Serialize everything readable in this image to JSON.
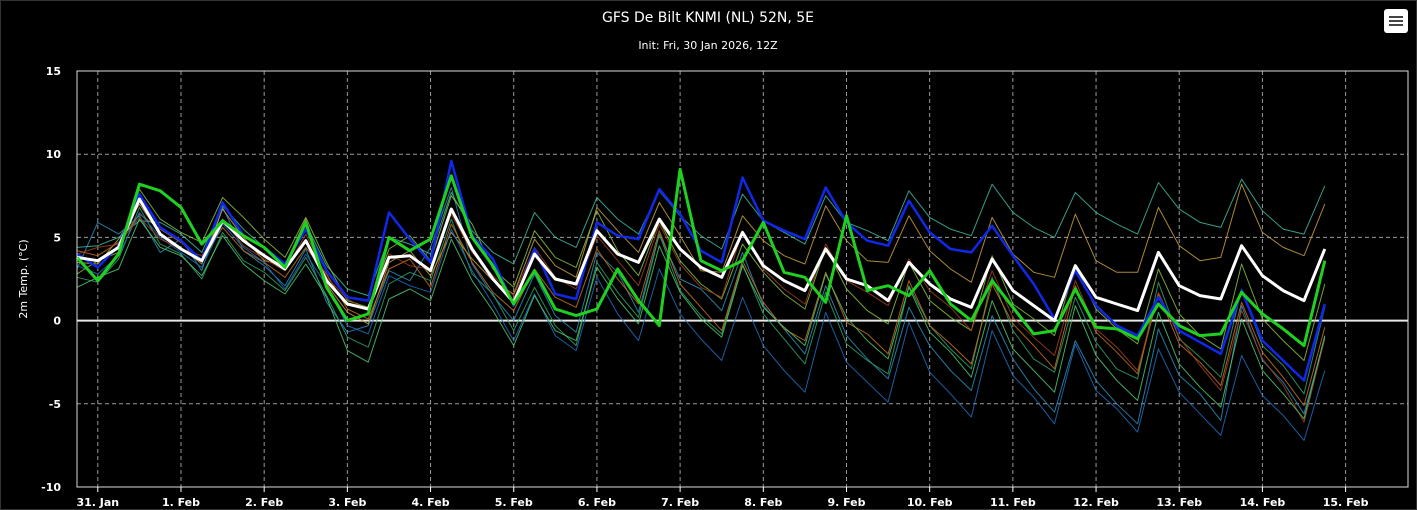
{
  "chart_data": {
    "type": "line",
    "title": "GFS De Bilt KNMI (NL) 52N, 5E",
    "subtitle": "Init: Fri, 30 Jan 2026, 12Z",
    "ylabel": "2m Temp. (°C)",
    "ylim": [
      -10,
      15
    ],
    "yticks": [
      -10,
      -5,
      0,
      5,
      10,
      15
    ],
    "x_start": "2026-01-30T18:00Z",
    "x_step_hours": 6,
    "xlim": [
      "2026-01-30T18:00Z",
      "2026-02-15T18:00Z"
    ],
    "xticks": [
      {
        "t": "2026-01-31T00:00Z",
        "label": "31. Jan"
      },
      {
        "t": "2026-02-01T00:00Z",
        "label": "1. Feb"
      },
      {
        "t": "2026-02-02T00:00Z",
        "label": "2. Feb"
      },
      {
        "t": "2026-02-03T00:00Z",
        "label": "3. Feb"
      },
      {
        "t": "2026-02-04T00:00Z",
        "label": "4. Feb"
      },
      {
        "t": "2026-02-05T00:00Z",
        "label": "5. Feb"
      },
      {
        "t": "2026-02-06T00:00Z",
        "label": "6. Feb"
      },
      {
        "t": "2026-02-07T00:00Z",
        "label": "7. Feb"
      },
      {
        "t": "2026-02-08T00:00Z",
        "label": "8. Feb"
      },
      {
        "t": "2026-02-09T00:00Z",
        "label": "9. Feb"
      },
      {
        "t": "2026-02-10T00:00Z",
        "label": "10. Feb"
      },
      {
        "t": "2026-02-11T00:00Z",
        "label": "11. Feb"
      },
      {
        "t": "2026-02-12T00:00Z",
        "label": "12. Feb"
      },
      {
        "t": "2026-02-13T00:00Z",
        "label": "13. Feb"
      },
      {
        "t": "2026-02-14T00:00Z",
        "label": "14. Feb"
      },
      {
        "t": "2026-02-15T00:00Z",
        "label": "15. Feb"
      }
    ],
    "grid": true,
    "series": [
      {
        "color": "#ffffff",
        "width": 3,
        "values": [
          3.8,
          3.6,
          4.4,
          7.3,
          5.2,
          4.3,
          3.6,
          6.0,
          4.8,
          3.9,
          3.1,
          4.8,
          2.4,
          1.0,
          0.7,
          3.8,
          3.9,
          3.0,
          6.7,
          4.3,
          2.5,
          1.1,
          4.0,
          2.5,
          2.2,
          5.4,
          4.0,
          3.5,
          6.1,
          4.3,
          3.2,
          2.6,
          5.3,
          3.3,
          2.4,
          1.8,
          4.3,
          2.5,
          2.1,
          1.2,
          3.5,
          2.2,
          1.3,
          0.8,
          3.7,
          1.8,
          0.9,
          0.0,
          3.3,
          1.4,
          1.0,
          0.6,
          4.1,
          2.1,
          1.5,
          1.3,
          4.5,
          2.7,
          1.8,
          1.2,
          4.3
        ]
      },
      {
        "color": "#20d020",
        "width": 3,
        "values": [
          3.8,
          2.4,
          4.0,
          8.2,
          7.8,
          6.8,
          4.6,
          6.0,
          5.1,
          4.4,
          3.2,
          5.9,
          2.0,
          0.0,
          0.4,
          5.0,
          4.2,
          4.9,
          8.7,
          5.0,
          3.3,
          1.0,
          3.0,
          0.7,
          0.3,
          0.7,
          3.1,
          1.2,
          -0.3,
          9.1,
          3.6,
          3.0,
          3.6,
          5.9,
          2.9,
          2.6,
          1.1,
          6.3,
          1.8,
          2.1,
          1.5,
          3.0,
          1.0,
          0.0,
          2.4,
          0.8,
          -0.8,
          -0.6,
          1.9,
          -0.4,
          -0.5,
          -1.1,
          1.0,
          -0.3,
          -0.9,
          -0.8,
          1.7,
          0.4,
          -0.5,
          -1.5,
          3.6
        ]
      },
      {
        "color": "#1028e8",
        "width": 2.5,
        "values": [
          4.0,
          3.2,
          4.5,
          7.6,
          5.6,
          4.8,
          3.6,
          7.1,
          5.1,
          4.4,
          3.4,
          5.5,
          3.0,
          1.4,
          1.2,
          6.5,
          4.9,
          3.5,
          9.6,
          5.1,
          3.7,
          0.9,
          4.3,
          1.6,
          1.3,
          5.9,
          5.1,
          4.9,
          7.9,
          6.4,
          4.2,
          3.5,
          8.6,
          6.0,
          5.4,
          4.9,
          8.0,
          5.9,
          4.8,
          4.5,
          7.2,
          5.3,
          4.3,
          4.1,
          5.7,
          3.9,
          2.2,
          0.1,
          3.0,
          0.9,
          -0.3,
          -0.9,
          1.4,
          -0.6,
          -1.3,
          -2.0,
          1.8,
          -1.2,
          -2.4,
          -3.6,
          1.0
        ]
      },
      {
        "color": "#2a8fb8",
        "width": 1,
        "values": [
          3.1,
          5.9,
          5.2,
          6.3,
          4.1,
          4.9,
          3.0,
          6.8,
          4.2,
          3.3,
          2.1,
          4.3,
          1.1,
          -0.7,
          -0.3,
          3.0,
          2.4,
          4.4,
          8.0,
          3.4,
          1.5,
          0.0,
          2.8,
          0.3,
          -0.7,
          4.1,
          2.9,
          0.5,
          5.2,
          2.5,
          1.9,
          0.6,
          4.1,
          0.9,
          -0.5,
          -2.0,
          2.1,
          -0.9,
          -2.3,
          -3.5,
          0.8,
          -1.5,
          -3.0,
          -4.2,
          0.3,
          -2.3,
          -4.1,
          -5.5,
          -1.2,
          -3.6,
          -5.0,
          -6.2,
          -0.5,
          -3.3,
          -4.4,
          -6.0,
          0.9,
          -2.4,
          -3.7,
          -5.6,
          -1.0
        ]
      },
      {
        "color": "#2fa36a",
        "width": 1,
        "values": [
          2.6,
          2.3,
          3.7,
          6.8,
          4.6,
          4.0,
          2.5,
          5.3,
          3.6,
          2.9,
          1.8,
          3.8,
          1.5,
          -1.0,
          -1.6,
          2.2,
          2.9,
          2.4,
          6.1,
          2.8,
          1.6,
          -0.6,
          2.0,
          -0.3,
          -1.5,
          3.5,
          1.7,
          0.2,
          5.2,
          1.8,
          0.3,
          -0.8,
          3.4,
          0.4,
          -1.1,
          -2.6,
          1.7,
          -1.4,
          -2.4,
          -3.2,
          2.1,
          -0.3,
          -1.7,
          -2.9,
          2.6,
          -0.6,
          -2.3,
          -3.1,
          1.4,
          -1.3,
          -2.9,
          -3.5,
          2.3,
          -1.1,
          -2.2,
          -3.4,
          1.9,
          -1.5,
          -2.7,
          -4.4,
          0.8
        ]
      },
      {
        "color": "#c8a040",
        "width": 1,
        "values": [
          3.5,
          3.4,
          4.9,
          7.0,
          5.2,
          4.4,
          3.4,
          6.7,
          5.0,
          3.6,
          3.3,
          6.1,
          2.2,
          0.5,
          -0.2,
          3.5,
          4.2,
          2.7,
          5.3,
          3.7,
          2.4,
          1.6,
          4.9,
          3.3,
          2.6,
          6.8,
          5.4,
          4.1,
          7.1,
          5.1,
          3.0,
          2.9,
          6.3,
          4.8,
          3.9,
          3.4,
          6.9,
          4.8,
          3.6,
          3.5,
          6.3,
          4.2,
          3.1,
          2.3,
          6.2,
          4.0,
          2.9,
          2.6,
          6.4,
          3.6,
          2.9,
          2.9,
          6.8,
          4.5,
          3.6,
          3.8,
          8.2,
          5.3,
          4.4,
          3.9,
          7.0
        ]
      },
      {
        "color": "#c87020",
        "width": 1,
        "values": [
          4.2,
          3.9,
          4.7,
          6.4,
          5.5,
          4.7,
          3.6,
          5.6,
          4.2,
          3.5,
          2.6,
          4.4,
          2.8,
          0.7,
          0.1,
          3.1,
          3.7,
          2.0,
          5.8,
          3.5,
          1.7,
          0.6,
          3.1,
          1.4,
          0.8,
          4.3,
          2.5,
          1.0,
          5.4,
          2.2,
          0.8,
          -0.6,
          3.6,
          1.1,
          -0.5,
          -1.2,
          2.9,
          -0.1,
          -0.8,
          -2.0,
          2.4,
          -0.3,
          -1.4,
          -2.6,
          2.2,
          -0.2,
          -1.5,
          -2.9,
          2.1,
          -0.7,
          -1.9,
          -3.2,
          1.6,
          -1.4,
          -2.5,
          -3.9,
          1.1,
          -1.9,
          -3.4,
          -5.1,
          -0.4
        ]
      },
      {
        "color": "#3fb8a0",
        "width": 1,
        "values": [
          4.4,
          4.5,
          5.0,
          6.0,
          5.9,
          5.2,
          4.1,
          6.9,
          5.5,
          4.4,
          3.2,
          5.8,
          3.3,
          1.9,
          1.5,
          5.0,
          4.6,
          4.0,
          7.7,
          5.4,
          4.1,
          3.4,
          6.5,
          5.0,
          4.4,
          7.4,
          6.1,
          5.2,
          7.8,
          6.3,
          5.1,
          4.3,
          7.6,
          6.0,
          5.3,
          4.6,
          7.5,
          5.9,
          5.4,
          4.8,
          7.8,
          6.2,
          5.5,
          5.1,
          8.2,
          6.5,
          5.6,
          5.0,
          7.7,
          6.5,
          5.8,
          5.2,
          8.3,
          6.7,
          5.9,
          5.6,
          8.5,
          6.6,
          5.5,
          5.2,
          8.1
        ]
      },
      {
        "color": "#88c040",
        "width": 1,
        "values": [
          2.8,
          3.6,
          4.1,
          7.9,
          6.1,
          5.3,
          4.7,
          7.4,
          6.2,
          4.9,
          3.8,
          6.2,
          3.5,
          1.2,
          0.8,
          4.3,
          5.1,
          3.6,
          7.5,
          5.8,
          3.1,
          2.0,
          5.4,
          3.8,
          3.2,
          6.6,
          4.2,
          2.7,
          6.0,
          3.6,
          2.2,
          1.3,
          4.6,
          2.9,
          1.6,
          0.7,
          4.4,
          1.9,
          0.6,
          -0.2,
          3.5,
          1.2,
          0.2,
          -0.6,
          3.9,
          1.0,
          0.1,
          -0.9,
          3.3,
          0.7,
          -0.5,
          -1.4,
          3.1,
          0.4,
          -0.9,
          -1.7,
          3.4,
          0.1,
          -1.2,
          -2.4,
          2.2
        ]
      },
      {
        "color": "#1e6fc0",
        "width": 1,
        "values": [
          3.3,
          2.8,
          3.9,
          6.5,
          5.0,
          4.1,
          3.2,
          5.8,
          4.4,
          3.5,
          1.9,
          4.0,
          2.1,
          -0.3,
          -0.8,
          2.7,
          2.1,
          1.7,
          5.5,
          3.0,
          1.0,
          -1.2,
          1.6,
          -0.9,
          -1.8,
          2.6,
          0.4,
          -1.2,
          3.1,
          0.4,
          -1.1,
          -2.4,
          1.4,
          -1.5,
          -3.0,
          -4.3,
          0.5,
          -2.5,
          -3.7,
          -4.9,
          -0.1,
          -3.1,
          -4.4,
          -5.8,
          -0.6,
          -3.3,
          -4.6,
          -6.2,
          -1.4,
          -4.2,
          -5.3,
          -6.7,
          -1.7,
          -4.3,
          -5.6,
          -6.9,
          -2.1,
          -4.5,
          -5.7,
          -7.2,
          -3.0
        ]
      },
      {
        "color": "#a04020",
        "width": 1,
        "values": [
          4.0,
          4.4,
          4.6,
          6.2,
          4.9,
          4.3,
          3.9,
          6.1,
          4.5,
          3.7,
          3.0,
          5.2,
          2.6,
          1.3,
          0.6,
          4.0,
          3.3,
          3.1,
          6.4,
          4.1,
          2.7,
          1.5,
          4.4,
          2.6,
          1.9,
          5.1,
          3.6,
          2.1,
          5.8,
          3.4,
          2.0,
          1.4,
          5.4,
          3.1,
          1.9,
          1.0,
          4.6,
          2.4,
          1.7,
          0.9,
          3.7,
          1.8,
          0.8,
          -0.6,
          3.0,
          0.2,
          -1.0,
          -2.1,
          2.4,
          -0.5,
          -1.6,
          -3.0,
          1.7,
          -1.0,
          -2.7,
          -4.2,
          0.6,
          -2.3,
          -3.9,
          -6.1,
          -1.1
        ]
      },
      {
        "color": "#4fc870",
        "width": 1,
        "values": [
          2.0,
          2.6,
          3.1,
          6.1,
          4.4,
          3.9,
          2.7,
          5.1,
          3.4,
          2.4,
          1.6,
          3.4,
          1.4,
          -1.8,
          -2.5,
          1.3,
          1.9,
          1.2,
          4.9,
          2.4,
          0.6,
          -1.5,
          1.5,
          -0.6,
          -1.2,
          3.2,
          1.3,
          -0.2,
          4.5,
          1.7,
          0.1,
          -1.0,
          3.3,
          0.8,
          -0.4,
          -1.5,
          2.8,
          0.2,
          -1.2,
          -2.3,
          2.0,
          -0.7,
          -1.9,
          -3.4,
          1.2,
          -1.7,
          -3.0,
          -4.3,
          0.9,
          -2.1,
          -3.6,
          -4.8,
          0.5,
          -2.6,
          -4.0,
          -5.2,
          0.1,
          -3.0,
          -4.4,
          -5.9,
          -0.9
        ]
      }
    ]
  }
}
